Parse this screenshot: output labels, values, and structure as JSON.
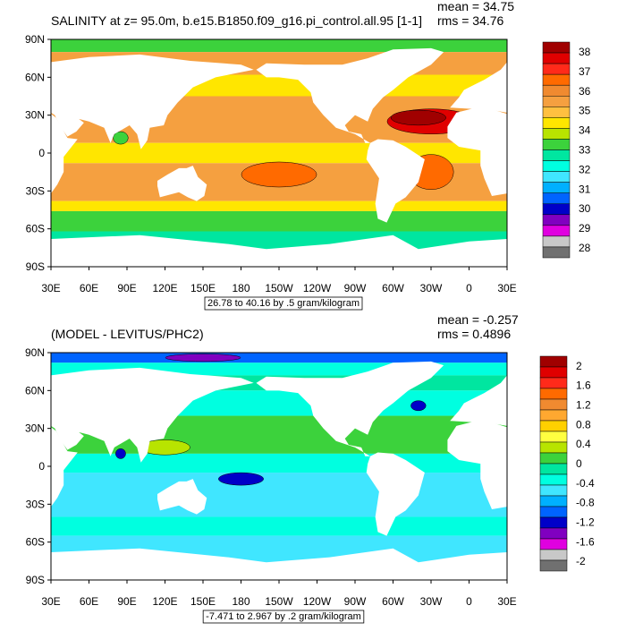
{
  "panels": [
    {
      "title": "SALINITY at z=  95.0m, b.e15.B1850.f09_g16.pi_control.all.95 [1-1]",
      "mean": "mean = 34.75",
      "rms": "rms = 34.76",
      "y_labels": [
        "90N",
        "60N",
        "30N",
        "0",
        "30S",
        "60S",
        "90S"
      ],
      "x_labels": [
        "30E",
        "60E",
        "90E",
        "120E",
        "150E",
        "180",
        "150W",
        "120W",
        "90W",
        "60W",
        "30W",
        "0",
        "30E"
      ],
      "info": "26.78 to 40.16 by .5 gram/kilogram",
      "colorbar": {
        "labels": [
          38,
          37,
          36,
          35,
          34,
          33,
          32,
          31,
          30,
          29,
          28
        ],
        "colors": [
          "#a00000",
          "#e00000",
          "#ff2a1a",
          "#ff6a00",
          "#f08a30",
          "#f5a040",
          "#ffc040",
          "#ffe600",
          "#b8e400",
          "#3cd23c",
          "#00e6a0",
          "#00ffe0",
          "#40e6ff",
          "#00b0ff",
          "#0064ff",
          "#0000c8",
          "#8000c0",
          "#e000e0",
          "#c8c8c8",
          "#707070"
        ]
      }
    },
    {
      "title": "(MODEL - LEVITUS/PHC2)",
      "mean": "mean = -0.257",
      "rms": "rms = 0.4896",
      "y_labels": [
        "90N",
        "60N",
        "30N",
        "0",
        "30S",
        "60S",
        "90S"
      ],
      "x_labels": [
        "30E",
        "60E",
        "90E",
        "120E",
        "150E",
        "180",
        "150W",
        "120W",
        "90W",
        "60W",
        "30W",
        "0",
        "30E"
      ],
      "info": "-7.471 to 2.967 by .2 gram/kilogram",
      "colorbar": {
        "labels": [
          2,
          1.6,
          1.2,
          0.8,
          0.4,
          0,
          -0.4,
          -0.8,
          -1.2,
          -1.6,
          -2
        ],
        "colors": [
          "#a00000",
          "#e00000",
          "#ff2a1a",
          "#ff6a00",
          "#f08a30",
          "#ffa830",
          "#ffd000",
          "#ffff40",
          "#b8e400",
          "#3cd23c",
          "#00e6a0",
          "#00ffe0",
          "#40e6ff",
          "#00b0ff",
          "#0064ff",
          "#0000c8",
          "#8000c0",
          "#e000e0",
          "#c8c8c8",
          "#707070"
        ]
      }
    }
  ]
}
